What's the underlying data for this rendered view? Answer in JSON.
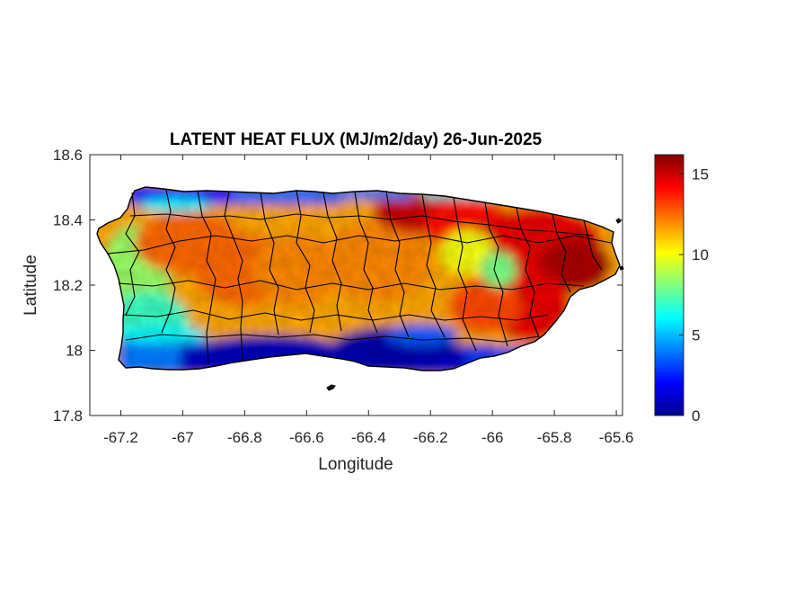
{
  "chart_data": {
    "type": "heatmap",
    "title": "LATENT HEAT FLUX (MJ/m2/day) 26-Jun-2025",
    "xlabel": "Longitude",
    "ylabel": "Latitude",
    "xlim": [
      -67.3,
      -65.58
    ],
    "ylim": [
      17.8,
      18.6
    ],
    "x_ticks": [
      -67.2,
      -67,
      -66.8,
      -66.6,
      -66.4,
      -66.2,
      -66,
      -65.8,
      -65.6
    ],
    "x_tick_labels": [
      "-67.2",
      "-67",
      "-66.8",
      "-66.6",
      "-66.4",
      "-66.2",
      "-66",
      "-65.8",
      "-65.6"
    ],
    "y_ticks": [
      17.8,
      18,
      18.2,
      18.4,
      18.6
    ],
    "y_tick_labels": [
      "17.8",
      "18",
      "18.2",
      "18.4",
      "18.6"
    ],
    "colorbar": {
      "colormap": "jet",
      "range": [
        0,
        16.2
      ],
      "ticks": [
        0,
        5,
        10,
        15
      ],
      "tick_labels": [
        "0",
        "5",
        "10",
        "15"
      ]
    },
    "spatial_pattern": {
      "south_coast": "low (0-3)",
      "north_coast_strip": "low (0-4)",
      "northwest_interior": "moderate-high (9-13)",
      "central_interior": "high (11-14)",
      "northeast": "very high (13-16)",
      "southeast": "high (12-15)",
      "southwest": "moderate (6-10)"
    }
  },
  "colors": {
    "axes": "#262626",
    "municipality_borders": "#000000",
    "background": "#ffffff"
  }
}
